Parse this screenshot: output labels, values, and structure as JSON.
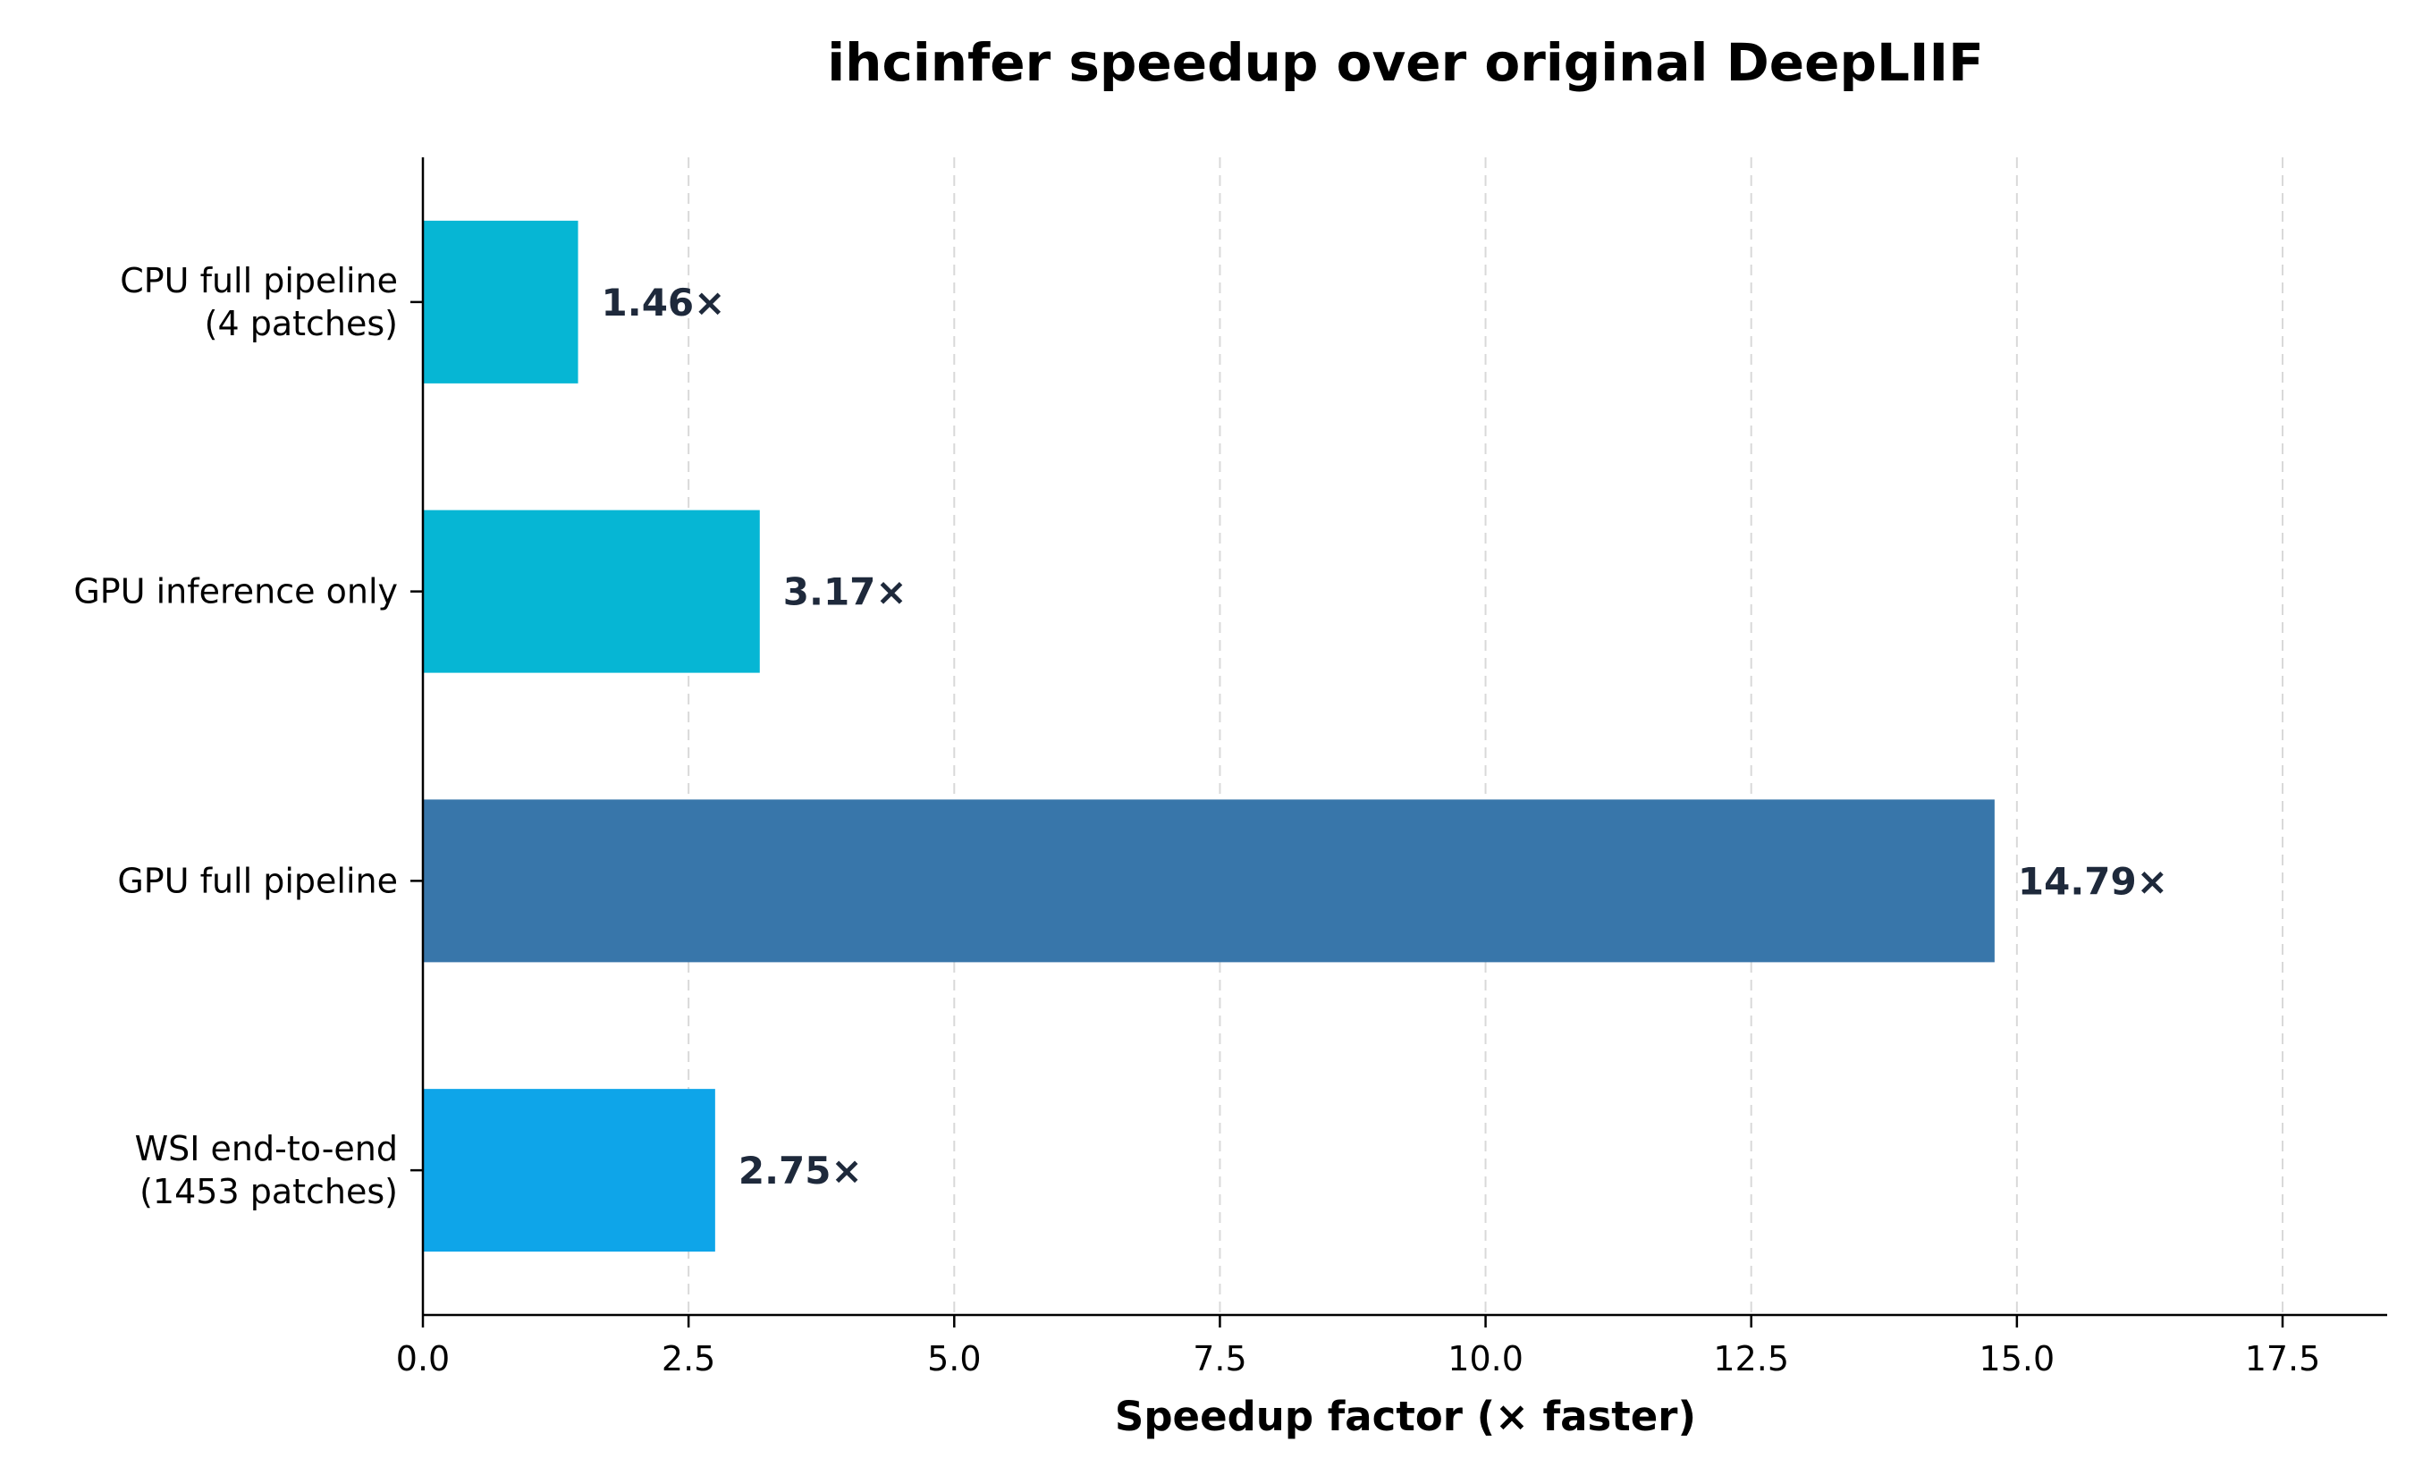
{
  "chart_data": {
    "type": "bar",
    "orientation": "horizontal",
    "title": "ihcinfer speedup over original DeepLIIF",
    "xlabel": "Speedup factor (× faster)",
    "ylabel": "",
    "xlim": [
      0,
      18.5
    ],
    "xticks": [
      0.0,
      2.5,
      5.0,
      7.5,
      10.0,
      12.5,
      15.0,
      17.5
    ],
    "xtick_labels": [
      "0.0",
      "2.5",
      "5.0",
      "7.5",
      "10.0",
      "12.5",
      "15.0",
      "17.5"
    ],
    "grid": "x-dashed",
    "categories": [
      [
        "CPU full pipeline",
        "(4 patches)"
      ],
      [
        "GPU inference only"
      ],
      [
        "GPU full pipeline"
      ],
      [
        "WSI end-to-end",
        "(1453 patches)"
      ]
    ],
    "values": [
      1.46,
      3.17,
      14.79,
      2.75
    ],
    "value_labels": [
      "1.46×",
      "3.17×",
      "14.79×",
      "2.75×"
    ],
    "colors": [
      "#06b6d4",
      "#06b6d4",
      "#3876aa",
      "#0ea5e9"
    ],
    "label_color": "#1e293b"
  }
}
